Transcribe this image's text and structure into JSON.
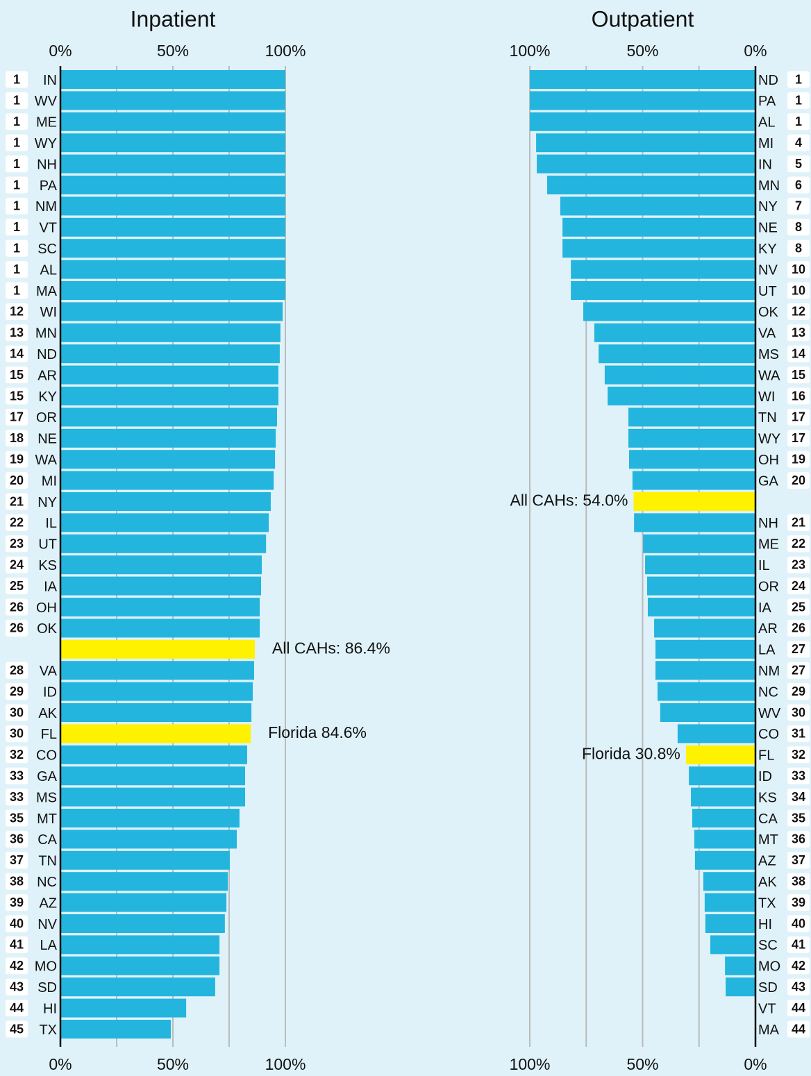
{
  "chart_data": [
    {
      "type": "bar",
      "orientation": "horizontal",
      "title": "Inpatient",
      "categories": [
        "IN",
        "WV",
        "ME",
        "WY",
        "NH",
        "PA",
        "NM",
        "VT",
        "SC",
        "AL",
        "MA",
        "WI",
        "MN",
        "ND",
        "AR",
        "KY",
        "OR",
        "NE",
        "WA",
        "MI",
        "NY",
        "IL",
        "UT",
        "KS",
        "IA",
        "OH",
        "OK",
        null,
        "VA",
        "ID",
        "AK",
        "FL",
        "CO",
        "GA",
        "MS",
        "MT",
        "CA",
        "TN",
        "NC",
        "AZ",
        "NV",
        "LA",
        "MO",
        "SD",
        "HI",
        "TX"
      ],
      "ranks": [
        1,
        1,
        1,
        1,
        1,
        1,
        1,
        1,
        1,
        1,
        1,
        12,
        13,
        14,
        15,
        15,
        17,
        18,
        19,
        20,
        21,
        22,
        23,
        24,
        25,
        26,
        26,
        null,
        28,
        29,
        30,
        30,
        32,
        33,
        33,
        35,
        36,
        37,
        38,
        39,
        40,
        41,
        42,
        43,
        44,
        45
      ],
      "values": [
        100,
        100,
        100,
        100,
        100,
        100,
        100,
        100,
        100,
        100,
        100,
        98.8,
        97.8,
        97.5,
        96.9,
        96.9,
        96.3,
        95.7,
        95.4,
        94.8,
        93.5,
        92.6,
        91.4,
        89.5,
        89.2,
        88.6,
        88.6,
        86.4,
        86.1,
        85.5,
        84.9,
        84.6,
        83.0,
        82.1,
        82.1,
        79.6,
        78.4,
        75.3,
        74.4,
        73.8,
        73.1,
        70.7,
        70.7,
        68.8,
        55.9,
        49.1
      ],
      "value_labels": [
        null,
        null,
        null,
        null,
        null,
        null,
        null,
        null,
        null,
        null,
        null,
        null,
        null,
        null,
        null,
        null,
        null,
        null,
        null,
        null,
        null,
        null,
        null,
        null,
        null,
        null,
        null,
        "All CAHs: 86.4%",
        null,
        null,
        null,
        "Florida 84.6%",
        null,
        null,
        null,
        null,
        null,
        null,
        null,
        null,
        null,
        null,
        null,
        null,
        null,
        null
      ],
      "color": "#23b5de",
      "highlight_color": "#fff200",
      "xlim": [
        0,
        100
      ],
      "xticks": [
        {
          "value": 0,
          "label": "0%"
        },
        {
          "value": 25,
          "label": null
        },
        {
          "value": 50,
          "label": "50%"
        },
        {
          "value": 75,
          "label": null
        },
        {
          "value": 100,
          "label": "100%"
        }
      ],
      "grid": true
    },
    {
      "type": "bar",
      "orientation": "horizontal",
      "title": "Outpatient",
      "categories": [
        "ND",
        "PA",
        "AL",
        "MI",
        "IN",
        "MN",
        "NY",
        "NE",
        "KY",
        "NV",
        "UT",
        "OK",
        "VA",
        "MS",
        "WA",
        "WI",
        "TN",
        "WY",
        "OH",
        "GA",
        null,
        "NH",
        "ME",
        "IL",
        "OR",
        "IA",
        "AR",
        "LA",
        "NM",
        "NC",
        "WV",
        "CO",
        "FL",
        "ID",
        "KS",
        "CA",
        "MT",
        "AZ",
        "AK",
        "TX",
        "HI",
        "SC",
        "MO",
        "SD",
        "VT",
        "MA"
      ],
      "ranks": [
        1,
        1,
        1,
        4,
        5,
        6,
        7,
        8,
        8,
        10,
        10,
        12,
        13,
        14,
        15,
        16,
        17,
        17,
        19,
        20,
        null,
        21,
        22,
        23,
        24,
        25,
        26,
        27,
        27,
        29,
        30,
        31,
        32,
        33,
        34,
        35,
        36,
        37,
        38,
        39,
        40,
        41,
        42,
        43,
        44,
        44
      ],
      "values": [
        100,
        100,
        100,
        97.2,
        96.9,
        92.3,
        86.5,
        85.5,
        85.5,
        81.8,
        81.8,
        76.3,
        71.4,
        69.5,
        66.8,
        65.5,
        56.3,
        56.3,
        56.0,
        54.5,
        54.0,
        53.8,
        49.8,
        48.9,
        48.0,
        47.7,
        44.9,
        44.3,
        44.3,
        43.4,
        42.2,
        34.5,
        30.8,
        29.5,
        28.6,
        28.0,
        27.1,
        26.8,
        23.1,
        22.5,
        22.2,
        20.0,
        13.5,
        13.2,
        0,
        0
      ],
      "value_labels": [
        null,
        null,
        null,
        null,
        null,
        null,
        null,
        null,
        null,
        null,
        null,
        null,
        null,
        null,
        null,
        null,
        null,
        null,
        null,
        null,
        "All CAHs: 54.0%",
        null,
        null,
        null,
        null,
        null,
        null,
        null,
        null,
        null,
        null,
        null,
        "Florida 30.8%",
        null,
        null,
        null,
        null,
        null,
        null,
        null,
        null,
        null,
        null,
        null,
        null,
        null
      ],
      "color": "#23b5de",
      "highlight_color": "#fff200",
      "xlim": [
        100,
        0
      ],
      "xticks": [
        {
          "value": 100,
          "label": "100%"
        },
        {
          "value": 75,
          "label": null
        },
        {
          "value": 50,
          "label": "50%"
        },
        {
          "value": 25,
          "label": null
        },
        {
          "value": 0,
          "label": "0%"
        }
      ],
      "grid": true
    }
  ]
}
